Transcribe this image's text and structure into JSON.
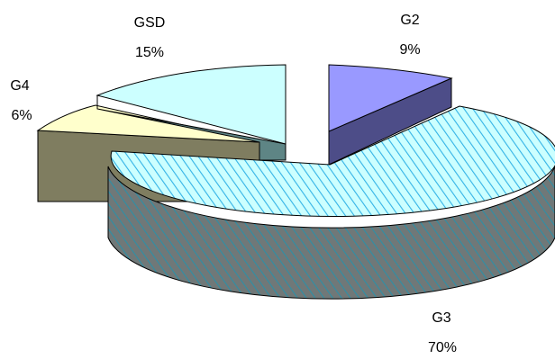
{
  "chart_data": {
    "type": "pie",
    "style": "3d-exploded",
    "title": "",
    "slices": [
      {
        "label": "G2",
        "value": 9,
        "display": "9%",
        "top_color": "#9999ff",
        "side_color": "#4d4d88",
        "pattern": "none"
      },
      {
        "label": "G3",
        "value": 70,
        "display": "70%",
        "top_color": "#ccffff",
        "side_color": "#6f8a8a",
        "pattern": "diagonal-hatch"
      },
      {
        "label": "G4",
        "value": 6,
        "display": "6%",
        "top_color": "#ffffcc",
        "side_color": "#7f7d60",
        "pattern": "none"
      },
      {
        "label": "GSD",
        "value": 15,
        "display": "15%",
        "top_color": "#ccffff",
        "side_color": "#5e8585",
        "pattern": "none"
      }
    ],
    "legend": "none"
  }
}
